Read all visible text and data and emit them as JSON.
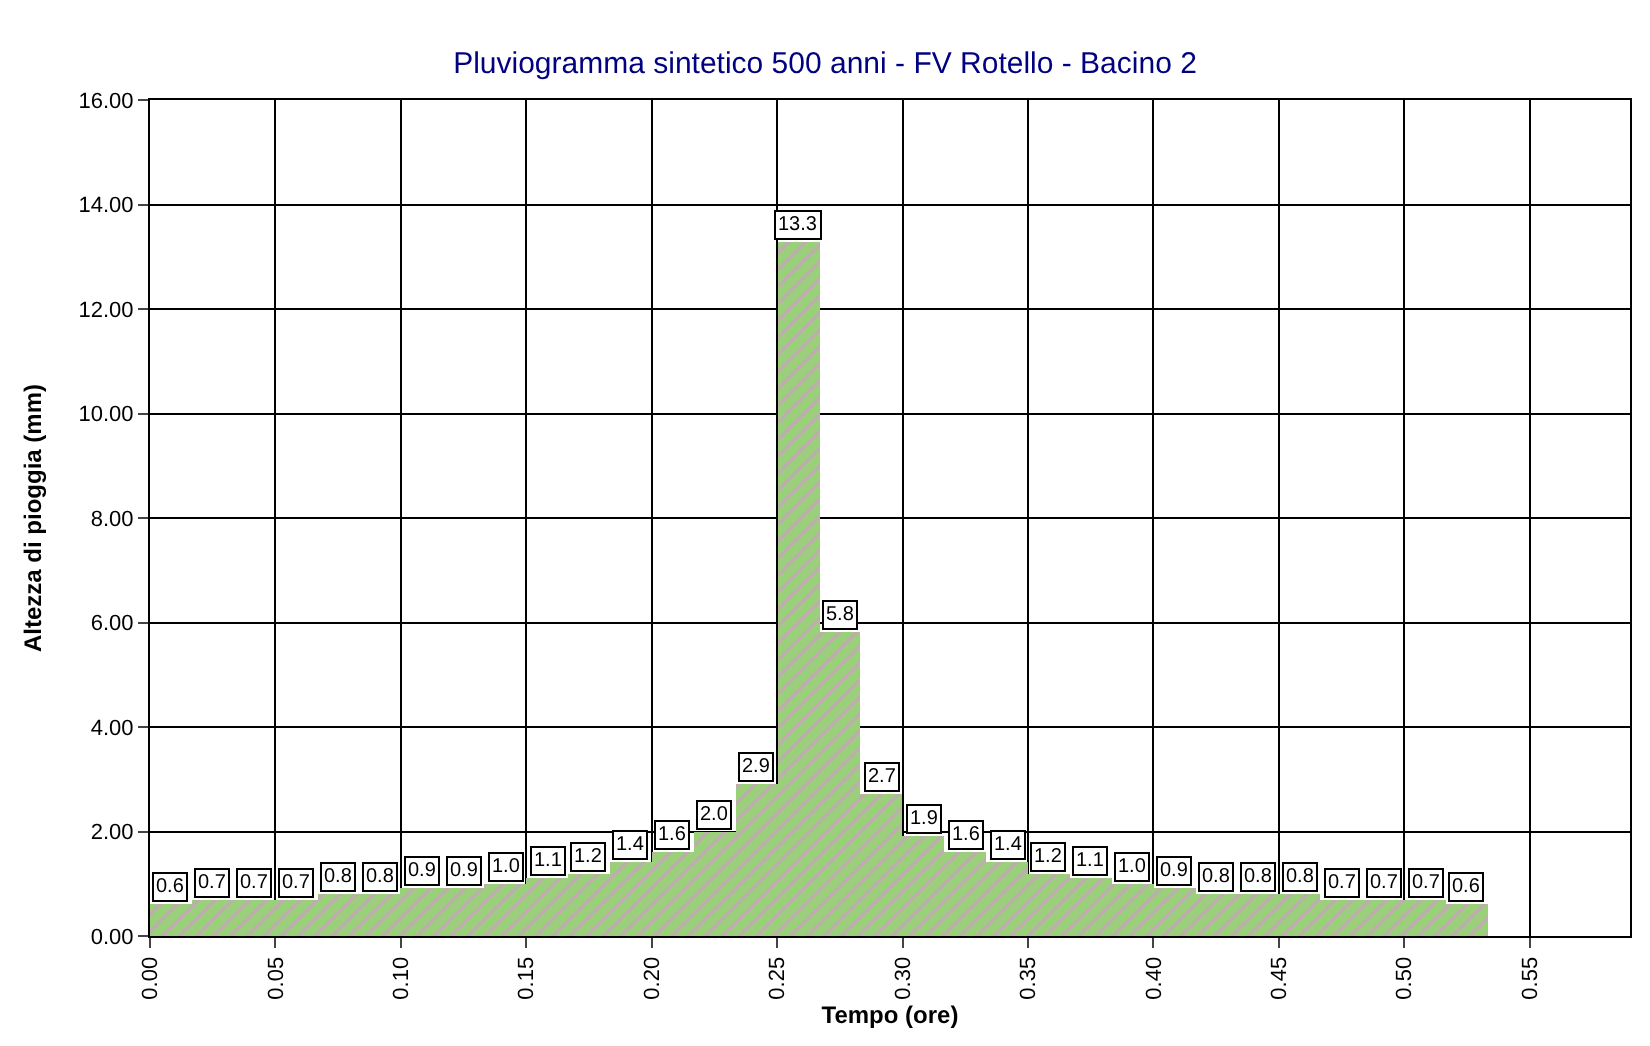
{
  "chart_data": {
    "type": "histogram",
    "title": "Pluviogramma sintetico 500 anni - FV Rotello - Bacino 2",
    "xlabel": "Tempo (ore)",
    "ylabel": "Altezza di pioggia (mm)",
    "bins": [
      0,
      0.0167,
      0.0333,
      0.05,
      0.0667,
      0.0833,
      0.1,
      0.1167,
      0.1333,
      0.15,
      0.1667,
      0.1833,
      0.2,
      0.2167,
      0.2333,
      0.25,
      0.2667,
      0.2833,
      0.3,
      0.3167,
      0.3333,
      0.35,
      0.3667,
      0.3833,
      0.4,
      0.4167,
      0.4333,
      0.45,
      0.4667,
      0.4833,
      0.5,
      0.5167,
      0.5333
    ],
    "values": [
      0.6,
      0.7,
      0.7,
      0.7,
      0.8,
      0.8,
      0.9,
      0.9,
      1.0,
      1.1,
      1.2,
      1.4,
      1.6,
      2.0,
      2.9,
      13.3,
      5.8,
      2.7,
      1.9,
      1.6,
      1.4,
      1.2,
      1.1,
      1.0,
      0.9,
      0.8,
      0.8,
      0.8,
      0.7,
      0.7,
      0.7,
      0.6
    ],
    "value_labels": [
      "0.6",
      "0.7",
      "0.7",
      "0.7",
      "0.8",
      "0.8",
      "0.9",
      "0.9",
      "1.0",
      "1.1",
      "1.2",
      "1.4",
      "1.6",
      "2.0",
      "2.9",
      "13.3",
      "5.8",
      "2.7",
      "1.9",
      "1.6",
      "1.4",
      "1.2",
      "1.1",
      "1.0",
      "0.9",
      "0.8",
      "0.8",
      "0.8",
      "0.7",
      "0.7",
      "0.7",
      "0.6"
    ],
    "color": "#9ad07a",
    "grid": true,
    "xlim": [
      0,
      0.59
    ],
    "xticks": [
      {
        "value": 0,
        "label": "0.00"
      },
      0.05,
      {
        "value": 0.1,
        "label": "0.10"
      },
      0.15,
      {
        "value": 0.2,
        "label": "0.20"
      },
      0.25,
      {
        "value": 0.3,
        "label": "0.30"
      },
      0.35,
      {
        "value": 0.4,
        "label": "0.40"
      },
      0.45,
      {
        "value": 0.5,
        "label": "0.50"
      },
      0.55
    ],
    "ylim": [
      0,
      16
    ],
    "yticks": [
      {
        "value": 0,
        "label": "0.00"
      },
      {
        "value": 2,
        "label": "2.00"
      },
      {
        "value": 4,
        "label": "4.00"
      },
      {
        "value": 6,
        "label": "6.00"
      },
      {
        "value": 8,
        "label": "8.00"
      },
      {
        "value": 10,
        "label": "10.00"
      },
      {
        "value": 12,
        "label": "12.00"
      },
      {
        "value": 14,
        "label": "14.00"
      },
      {
        "value": 16,
        "label": "16.00"
      }
    ]
  }
}
